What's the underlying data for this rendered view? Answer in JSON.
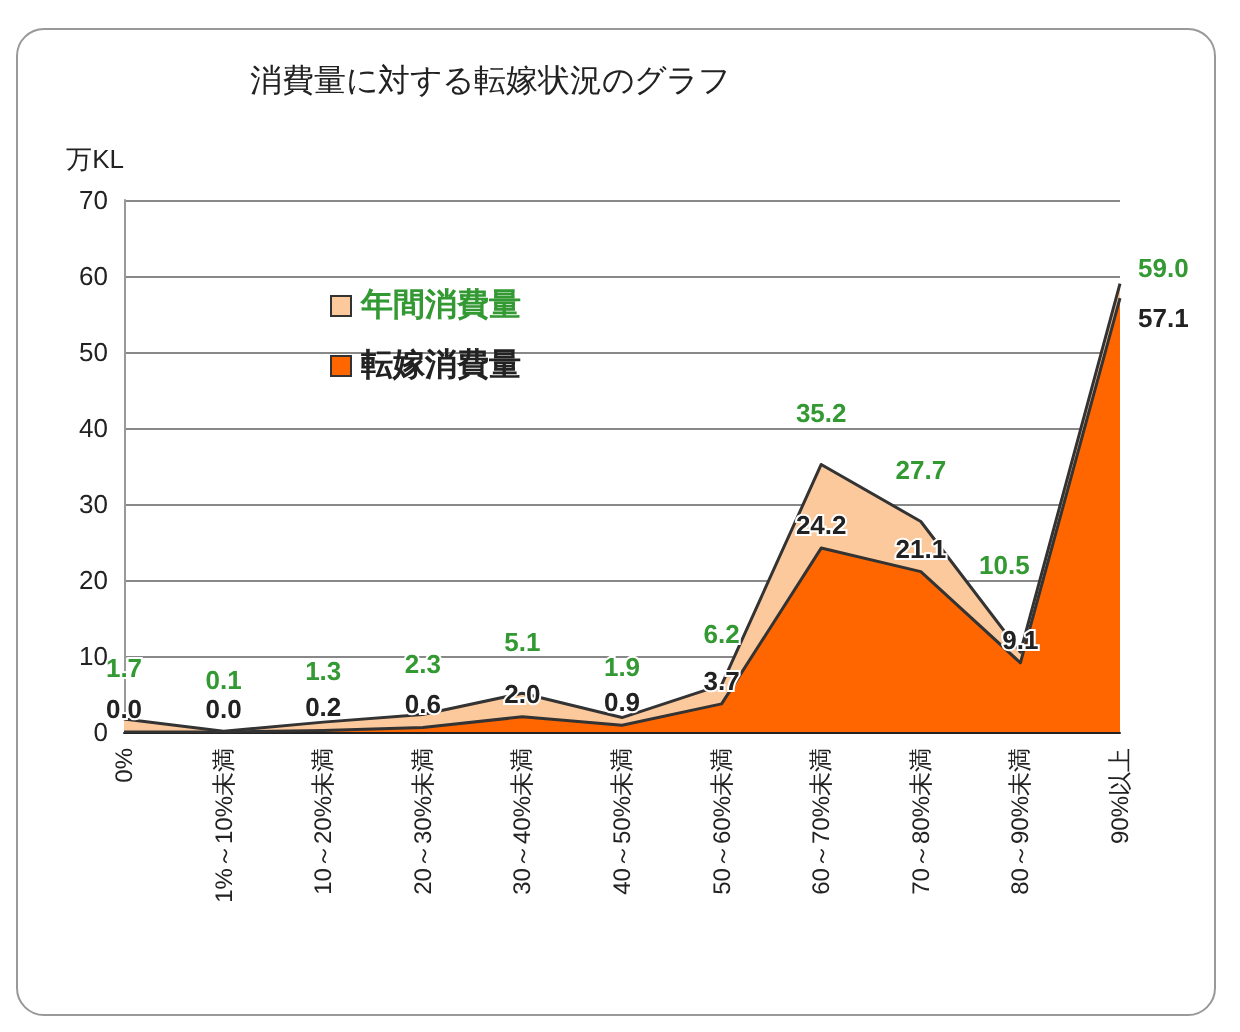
{
  "chart_data": {
    "type": "area",
    "title": "消費量に対する転嫁状況のグラフ",
    "ylabel": "万KL",
    "categories": [
      "0%",
      "1%～10%未満",
      "10～20%未満",
      "20～30%未満",
      "30～40%未満",
      "40～50%未満",
      "50～60%未満",
      "60～70%未満",
      "70～80%未満",
      "80～90%未満",
      "90%以上"
    ],
    "series": [
      {
        "name": "年間消費量",
        "color": "#fcc99c",
        "values": [
          1.7,
          0.1,
          1.3,
          2.3,
          5.1,
          1.9,
          6.2,
          35.2,
          27.7,
          10.5,
          59.0
        ],
        "value_labels": [
          "1.7",
          "0.1",
          "1.3",
          "2.3",
          "5.1",
          "1.9",
          "6.2",
          "35.2",
          "27.7",
          "10.5",
          "59.0"
        ]
      },
      {
        "name": "転嫁消費量",
        "color": "#ff6600",
        "values": [
          0.0,
          0.0,
          0.2,
          0.6,
          2.0,
          0.9,
          3.7,
          24.2,
          21.1,
          9.1,
          57.1
        ],
        "value_labels": [
          "0.0",
          "0.0",
          "0.2",
          "0.6",
          "2.0",
          "0.9",
          "3.7",
          "24.2",
          "21.1",
          "9.1",
          "57.1"
        ]
      }
    ],
    "ylim": [
      0,
      70
    ],
    "yticks": [
      0,
      10,
      20,
      30,
      40,
      50,
      60,
      70
    ],
    "grid": "y",
    "legend": "top left",
    "marker": "none",
    "line_style": "solid"
  }
}
